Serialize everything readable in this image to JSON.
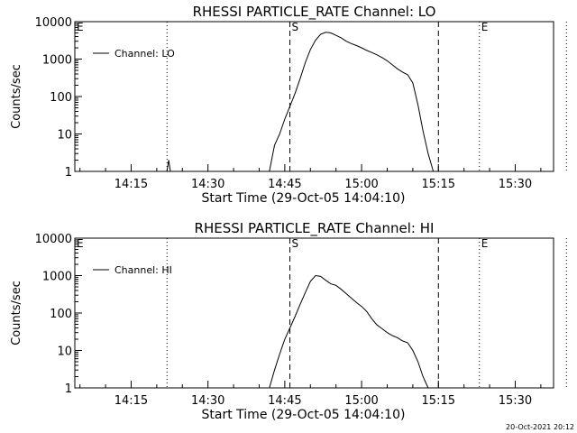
{
  "footer": {
    "timestamp": "20-Oct-2021 20:12"
  },
  "chart_data": [
    {
      "type": "line",
      "title": "RHESSI PARTICLE_RATE Channel: LO",
      "xlabel": "Start Time (29-Oct-05 14:04:10)",
      "ylabel": "Counts/sec",
      "y_scale": "log",
      "ylim": [
        1,
        10000
      ],
      "y_ticks": [
        1,
        10,
        100,
        1000,
        10000
      ],
      "y_tick_labels": [
        "1",
        "10",
        "100",
        "1000",
        "10000"
      ],
      "x_ticks": [
        "14:15",
        "14:30",
        "14:45",
        "15:00",
        "15:15",
        "15:30"
      ],
      "legend": {
        "position": "top-left",
        "entries": [
          "Channel: LO"
        ]
      },
      "markers": [
        {
          "time": "14:22",
          "style": "dotted",
          "label": ""
        },
        {
          "time": "14:04",
          "style": "dotted",
          "label": "E"
        },
        {
          "time": "14:46",
          "style": "dashed",
          "label": "S"
        },
        {
          "time": "15:15",
          "style": "dashed",
          "label": ""
        },
        {
          "time": "15:23",
          "style": "dotted",
          "label": "E"
        },
        {
          "time": "15:40",
          "style": "dotted",
          "label": ""
        }
      ],
      "series": [
        {
          "name": "Channel: LO",
          "x": [
            "14:22",
            "14:22:20",
            "14:22:40",
            "14:42",
            "14:43",
            "14:44",
            "14:45",
            "14:46",
            "14:47",
            "14:48",
            "14:49",
            "14:50",
            "14:51",
            "14:52",
            "14:53",
            "14:54",
            "14:55",
            "14:56",
            "14:57",
            "14:58",
            "14:59",
            "15:00",
            "15:01",
            "15:02",
            "15:03",
            "15:04",
            "15:05",
            "15:06",
            "15:07",
            "15:08",
            "15:09",
            "15:10",
            "15:11",
            "15:12",
            "15:13",
            "15:14"
          ],
          "y": [
            1,
            2,
            1,
            1,
            5,
            10,
            25,
            55,
            120,
            300,
            800,
            1800,
            3200,
            4600,
            5200,
            5000,
            4300,
            3700,
            3000,
            2600,
            2300,
            2000,
            1700,
            1500,
            1300,
            1100,
            900,
            700,
            550,
            450,
            380,
            230,
            60,
            12,
            3,
            1
          ]
        }
      ]
    },
    {
      "type": "line",
      "title": "RHESSI PARTICLE_RATE Channel: HI",
      "xlabel": "Start Time (29-Oct-05 14:04:10)",
      "ylabel": "Counts/sec",
      "y_scale": "log",
      "ylim": [
        1,
        10000
      ],
      "y_ticks": [
        1,
        10,
        100,
        1000,
        10000
      ],
      "y_tick_labels": [
        "1",
        "10",
        "100",
        "1000",
        "10000"
      ],
      "x_ticks": [
        "14:15",
        "14:30",
        "14:45",
        "15:00",
        "15:15",
        "15:30"
      ],
      "legend": {
        "position": "top-left",
        "entries": [
          "Channel: HI"
        ]
      },
      "markers": [
        {
          "time": "14:22",
          "style": "dotted",
          "label": ""
        },
        {
          "time": "14:04",
          "style": "dotted",
          "label": "E"
        },
        {
          "time": "14:46",
          "style": "dashed",
          "label": "S"
        },
        {
          "time": "15:15",
          "style": "dashed",
          "label": ""
        },
        {
          "time": "15:23",
          "style": "dotted",
          "label": "E"
        },
        {
          "time": "15:40",
          "style": "dotted",
          "label": ""
        }
      ],
      "series": [
        {
          "name": "Channel: HI",
          "x": [
            "14:42",
            "14:43",
            "14:44",
            "14:45",
            "14:46",
            "14:47",
            "14:48",
            "14:49",
            "14:50",
            "14:51",
            "14:52",
            "14:53",
            "14:54",
            "14:55",
            "14:56",
            "14:57",
            "14:58",
            "14:59",
            "15:00",
            "15:01",
            "15:02",
            "15:03",
            "15:04",
            "15:05",
            "15:06",
            "15:07",
            "15:08",
            "15:09",
            "15:10",
            "15:11",
            "15:12",
            "15:13"
          ],
          "y": [
            1,
            3,
            8,
            20,
            40,
            80,
            170,
            350,
            700,
            1000,
            950,
            750,
            600,
            550,
            430,
            330,
            250,
            190,
            150,
            110,
            70,
            48,
            38,
            30,
            25,
            22,
            18,
            16,
            10,
            5,
            2,
            1
          ]
        }
      ]
    }
  ]
}
